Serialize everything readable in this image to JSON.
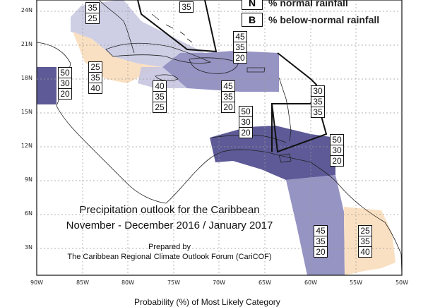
{
  "legend": [
    {
      "key": "N",
      "text": "% normal rainfall"
    },
    {
      "key": "B",
      "text": "% below-normal rainfall"
    }
  ],
  "axes": {
    "lat_labels": [
      "24N",
      "21N",
      "18N",
      "15N",
      "12N",
      "9N",
      "6N",
      "3N"
    ],
    "lon_labels": [
      "90W",
      "85W",
      "80W",
      "75W",
      "70W",
      "65W",
      "60W",
      "55W",
      "50W"
    ]
  },
  "title": {
    "line1": "Precipitation outlook for the Caribbean",
    "line2": "November - December 2016 / January 2017",
    "prepared": "Prepared by",
    "org": "The Caribbean Regional Climate Outlook Forum (CariCOF)"
  },
  "footer": "Probability (%) of Most Likely Category",
  "colors": {
    "below_dark": "#5d5a97",
    "below_mid": "#8b88bc",
    "below_light": "#c6c5e0",
    "above_light": "#fae0c2"
  },
  "boxes": [
    {
      "id": "top-left-partial",
      "values": [
        "35",
        "25"
      ]
    },
    {
      "id": "top-mid-partial",
      "values": [
        "35"
      ]
    },
    {
      "id": "bahamas",
      "values": [
        "45",
        "35",
        "20"
      ]
    },
    {
      "id": "belize",
      "values": [
        "50",
        "30",
        "20"
      ]
    },
    {
      "id": "cayman",
      "values": [
        "25",
        "35",
        "40"
      ]
    },
    {
      "id": "jamaica",
      "values": [
        "40",
        "35",
        "25"
      ]
    },
    {
      "id": "hispaniola",
      "values": [
        "45",
        "35",
        "20"
      ]
    },
    {
      "id": "caribbean-sea",
      "values": [
        "50",
        "30",
        "20"
      ]
    },
    {
      "id": "leeward",
      "values": [
        "30",
        "35",
        "35"
      ]
    },
    {
      "id": "windward",
      "values": [
        "50",
        "30",
        "20"
      ]
    },
    {
      "id": "guyana",
      "values": [
        "45",
        "35",
        "20"
      ]
    },
    {
      "id": "french-guiana",
      "values": [
        "25",
        "35",
        "40"
      ]
    }
  ]
}
